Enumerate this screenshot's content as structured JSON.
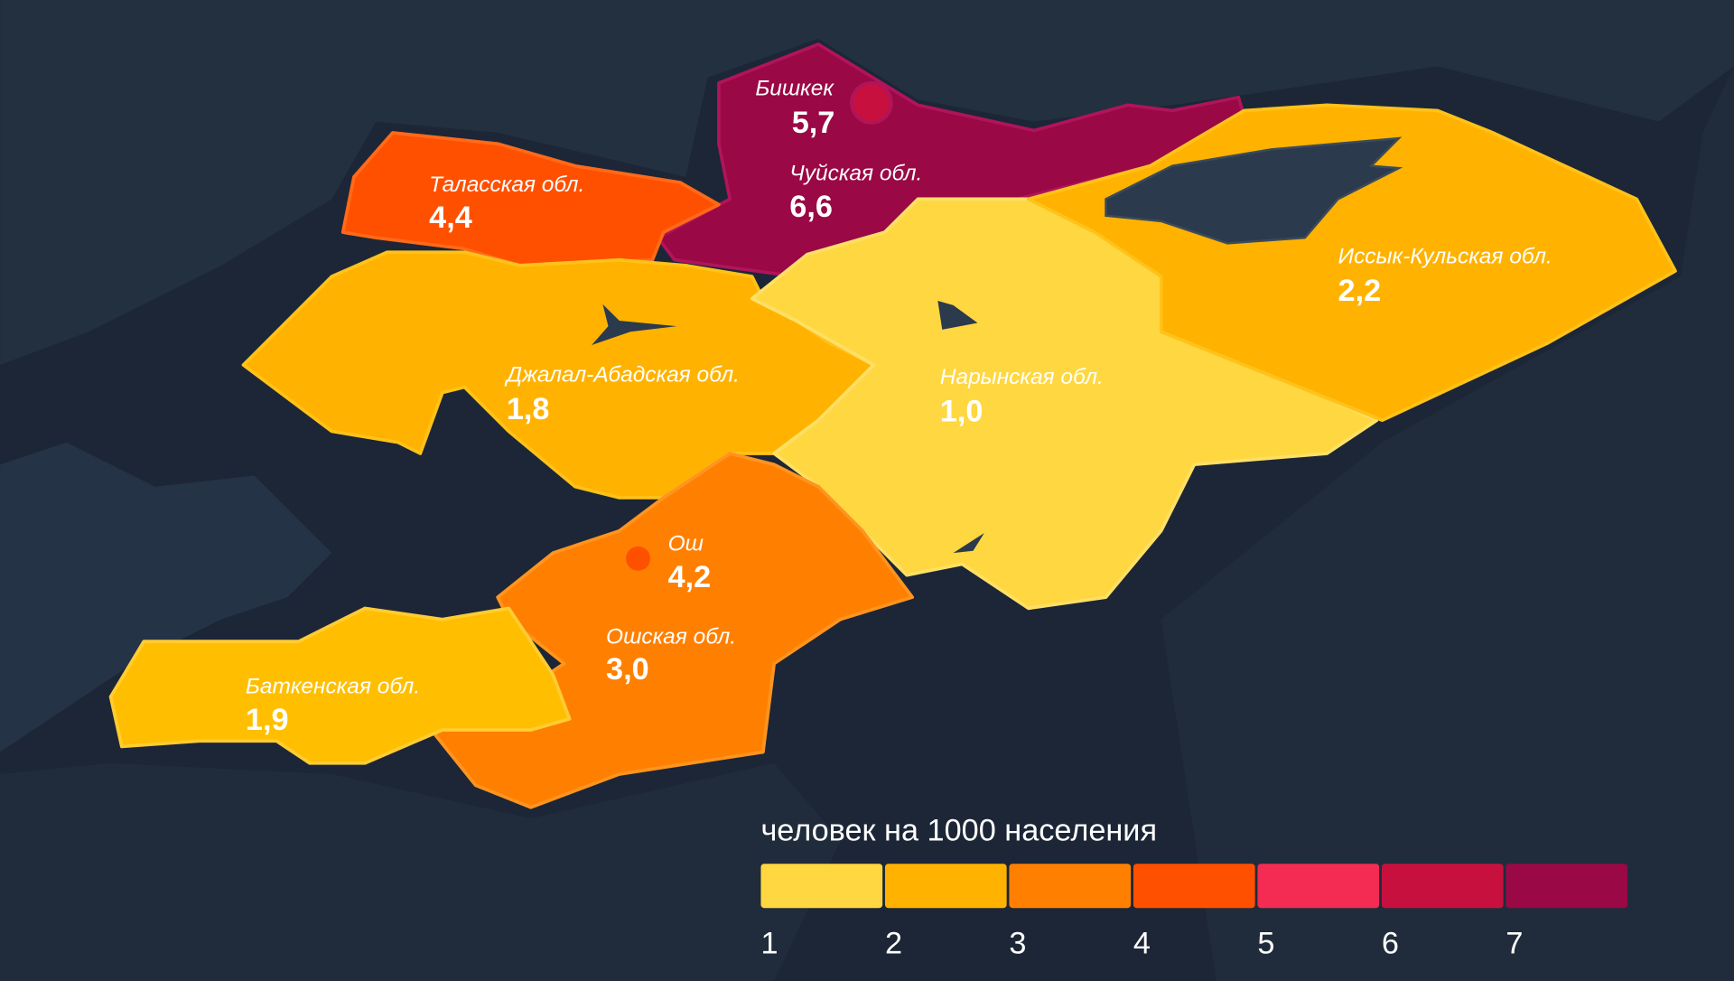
{
  "regions": [
    {
      "name": "Бишкек",
      "value": "5,7",
      "color": "#c8103f"
    },
    {
      "name": "Чуйская обл.",
      "value": "6,6",
      "color": "#9a0845"
    },
    {
      "name": "Таласская обл.",
      "value": "4,4",
      "color": "#ff5000"
    },
    {
      "name": "Джалал-Абадская обл.",
      "value": "1,8",
      "color": "#ffb300"
    },
    {
      "name": "Нарынская обл.",
      "value": "1,0",
      "color": "#ffd740"
    },
    {
      "name": "Иссык-Кульская обл.",
      "value": "2,2",
      "color": "#ffb300"
    },
    {
      "name": "Ош",
      "value": "4,2",
      "color": "#ff5000"
    },
    {
      "name": "Ошская обл.",
      "value": "3,0",
      "color": "#ff8000"
    },
    {
      "name": "Баткенская обл.",
      "value": "1,9",
      "color": "#ffbf00"
    }
  ],
  "legend": {
    "title": "человек на 1000 населения",
    "colors": [
      "#ffd740",
      "#ffb300",
      "#ff8000",
      "#ff5000",
      "#f42c54",
      "#c8103f",
      "#9a0845"
    ],
    "ticks": [
      "1",
      "2",
      "3",
      "4",
      "5",
      "6",
      "7"
    ]
  },
  "colors": {
    "background": "#1c2636",
    "neighbors": "#243346",
    "lakes": "#2b3a4c"
  }
}
